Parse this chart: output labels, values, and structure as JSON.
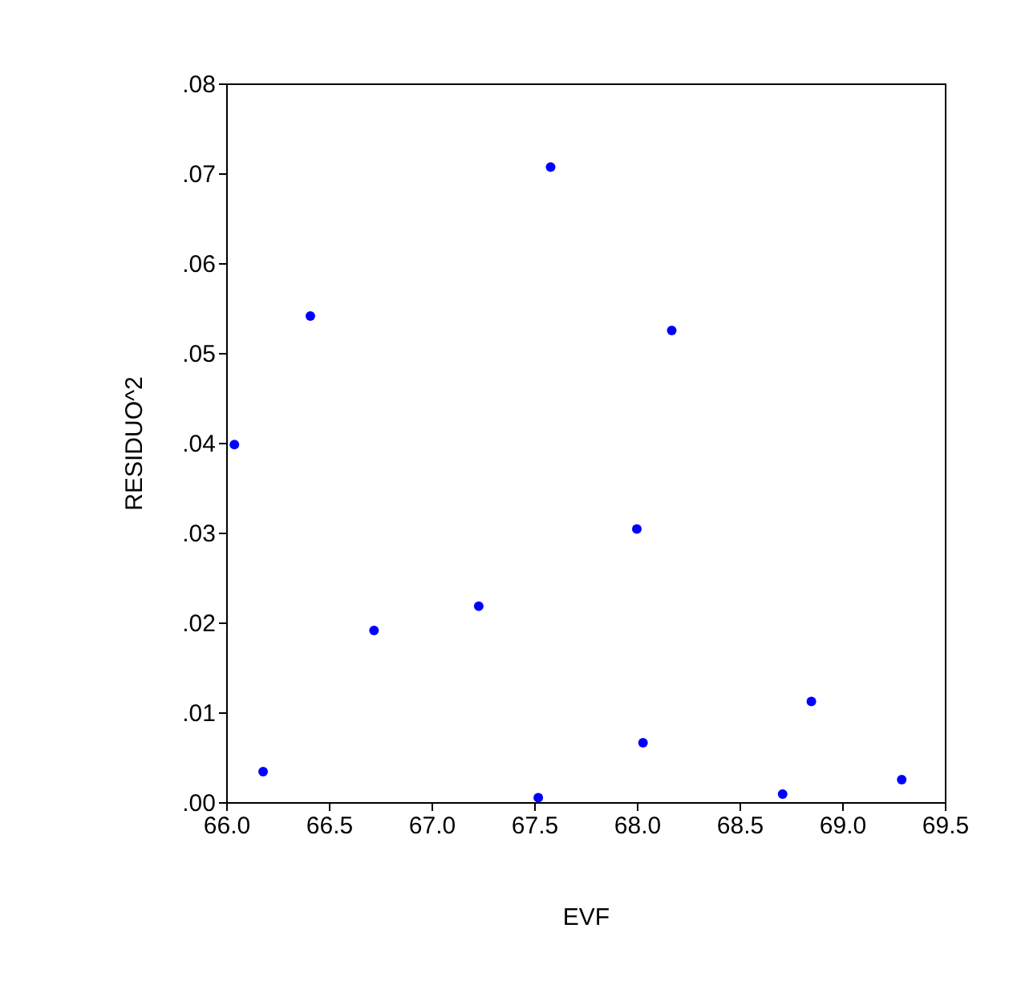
{
  "chart_data": {
    "type": "scatter",
    "xlabel": "EVF",
    "ylabel": "RESIDUO^2",
    "marker": "circle",
    "grid": false,
    "legend": false,
    "x": [
      66.04,
      66.18,
      66.41,
      66.72,
      67.23,
      67.52,
      67.58,
      68.0,
      68.03,
      68.17,
      68.71,
      68.85,
      69.29
    ],
    "series": [
      {
        "color": "#0000ff",
        "values": [
          0.0398,
          0.0034,
          0.0541,
          0.0191,
          0.0218,
          0.0005,
          0.0707,
          0.0304,
          0.0066,
          0.0525,
          0.0009,
          0.0112,
          0.0025
        ]
      }
    ],
    "xlim": [
      66.0,
      69.5
    ],
    "xticks": [
      {
        "value": 66.0,
        "label": "66.0"
      },
      {
        "value": 66.5,
        "label": "66.5"
      },
      {
        "value": 67.0,
        "label": "67.0"
      },
      {
        "value": 67.5,
        "label": "67.5"
      },
      {
        "value": 68.0,
        "label": "68.0"
      },
      {
        "value": 68.5,
        "label": "68.5"
      },
      {
        "value": 69.0,
        "label": "69.0"
      },
      {
        "value": 69.5,
        "label": "69.5"
      }
    ],
    "ylim": [
      0,
      0.08
    ],
    "yticks": [
      {
        "value": 0,
        "label": ".00"
      },
      {
        "value": 0.01,
        "label": ".01"
      },
      {
        "value": 0.02,
        "label": ".02"
      },
      {
        "value": 0.03,
        "label": ".03"
      },
      {
        "value": 0.04,
        "label": ".04"
      },
      {
        "value": 0.05,
        "label": ".05"
      },
      {
        "value": 0.06,
        "label": ".06"
      },
      {
        "value": 0.07,
        "label": ".07"
      },
      {
        "value": 0.08,
        "label": ".08"
      }
    ]
  }
}
